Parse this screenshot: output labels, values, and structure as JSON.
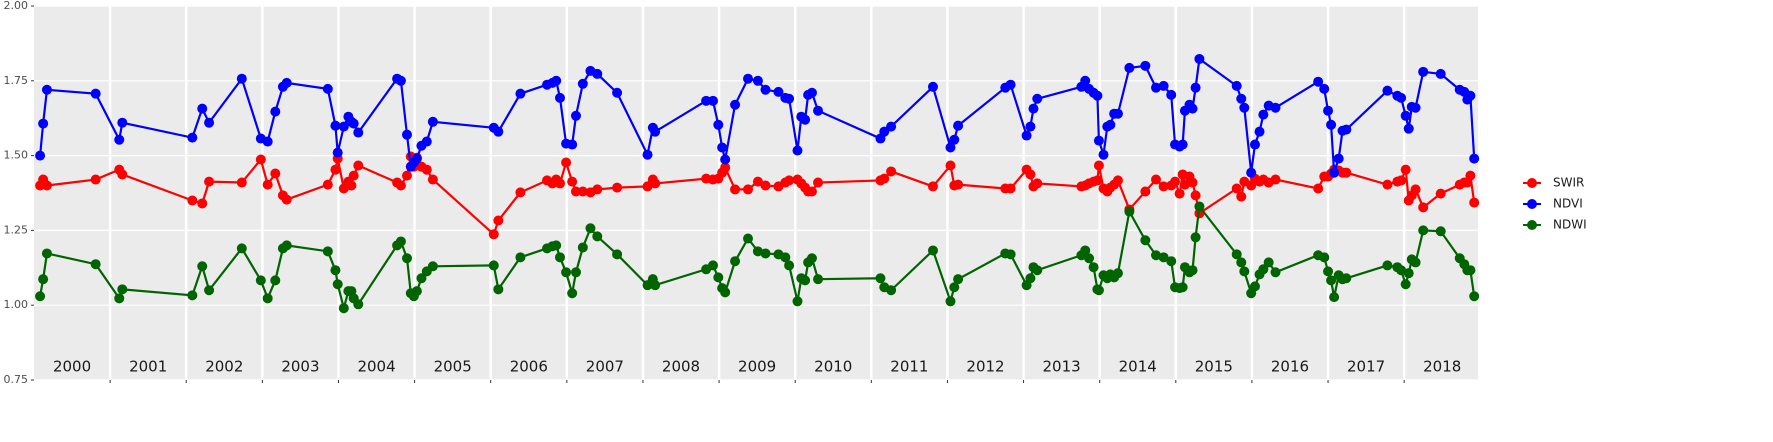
{
  "chart_data": {
    "type": "line",
    "x": [
      2000.08,
      2000.12,
      2000.17,
      2000.81,
      2001.12,
      2001.16,
      2002.08,
      2002.21,
      2002.3,
      2002.73,
      2002.98,
      2003.07,
      2003.17,
      2003.27,
      2003.32,
      2003.86,
      2003.96,
      2003.99,
      2004.07,
      2004.13,
      2004.17,
      2004.2,
      2004.26,
      2004.77,
      2004.82,
      2004.9,
      2004.95,
      2004.99,
      2005.03,
      2005.09,
      2005.16,
      2005.24,
      2006.04,
      2006.1,
      2006.39,
      2006.74,
      2006.81,
      2006.86,
      2006.91,
      2006.99,
      2007.07,
      2007.12,
      2007.21,
      2007.31,
      2007.4,
      2007.66,
      2008.06,
      2008.13,
      2008.16,
      2008.83,
      2008.92,
      2008.99,
      2009.04,
      2009.08,
      2009.21,
      2009.38,
      2009.51,
      2009.61,
      2009.78,
      2009.87,
      2009.92,
      2010.03,
      2010.08,
      2010.13,
      2010.17,
      2010.22,
      2010.3,
      2011.12,
      2011.17,
      2011.26,
      2011.81,
      2012.04,
      2012.09,
      2012.14,
      2012.76,
      2012.83,
      2013.04,
      2013.09,
      2013.13,
      2013.18,
      2013.76,
      2013.81,
      2013.86,
      2013.92,
      2013.97,
      2013.99,
      2014.05,
      2014.1,
      2014.14,
      2014.19,
      2014.24,
      2014.39,
      2014.6,
      2014.74,
      2014.84,
      2014.94,
      2014.99,
      2015.05,
      2015.09,
      2015.12,
      2015.18,
      2015.22,
      2015.26,
      2015.31,
      2015.8,
      2015.86,
      2015.9,
      2015.99,
      2016.04,
      2016.1,
      2016.15,
      2016.22,
      2016.31,
      2016.87,
      2016.95,
      2017.0,
      2017.04,
      2017.08,
      2017.14,
      2017.19,
      2017.24,
      2017.78,
      2017.91,
      2017.96,
      2018.02,
      2018.06,
      2018.1,
      2018.15,
      2018.25,
      2018.48,
      2018.73,
      2018.79,
      2018.83,
      2018.87,
      2018.92
    ],
    "series": [
      {
        "name": "SWIR",
        "color": "#ff0000",
        "values": [
          1.4,
          1.42,
          1.4,
          1.42,
          1.453,
          1.437,
          1.35,
          1.34,
          1.413,
          1.41,
          1.487,
          1.403,
          1.44,
          1.367,
          1.353,
          1.403,
          1.453,
          1.49,
          1.39,
          1.413,
          1.4,
          1.433,
          1.467,
          1.41,
          1.4,
          1.433,
          1.497,
          1.463,
          1.493,
          1.463,
          1.453,
          1.42,
          1.237,
          1.283,
          1.377,
          1.417,
          1.407,
          1.42,
          1.407,
          1.477,
          1.413,
          1.38,
          1.38,
          1.377,
          1.387,
          1.393,
          1.397,
          1.42,
          1.407,
          1.423,
          1.42,
          1.423,
          1.443,
          1.46,
          1.387,
          1.387,
          1.413,
          1.4,
          1.397,
          1.41,
          1.417,
          1.42,
          1.407,
          1.393,
          1.38,
          1.38,
          1.41,
          1.417,
          1.423,
          1.447,
          1.397,
          1.467,
          1.4,
          1.403,
          1.39,
          1.39,
          1.453,
          1.437,
          1.397,
          1.407,
          1.397,
          1.4,
          1.407,
          1.413,
          1.417,
          1.467,
          1.39,
          1.38,
          1.393,
          1.403,
          1.417,
          1.32,
          1.38,
          1.42,
          1.397,
          1.4,
          1.413,
          1.373,
          1.437,
          1.403,
          1.43,
          1.41,
          1.367,
          1.307,
          1.39,
          1.363,
          1.413,
          1.4,
          1.423,
          1.413,
          1.42,
          1.41,
          1.42,
          1.39,
          1.43,
          1.43,
          1.44,
          1.453,
          1.45,
          1.443,
          1.443,
          1.403,
          1.413,
          1.417,
          1.453,
          1.35,
          1.367,
          1.387,
          1.327,
          1.373,
          1.403,
          1.41,
          1.41,
          1.433,
          1.343
        ]
      },
      {
        "name": "NDVI",
        "color": "#0000ff",
        "values": [
          1.5,
          1.607,
          1.72,
          1.707,
          1.553,
          1.61,
          1.56,
          1.657,
          1.61,
          1.757,
          1.557,
          1.547,
          1.647,
          1.73,
          1.743,
          1.723,
          1.6,
          1.51,
          1.597,
          1.63,
          1.613,
          1.607,
          1.577,
          1.757,
          1.75,
          1.57,
          1.463,
          1.477,
          1.49,
          1.533,
          1.547,
          1.613,
          1.593,
          1.58,
          1.707,
          1.737,
          1.743,
          1.75,
          1.693,
          1.54,
          1.537,
          1.633,
          1.74,
          1.783,
          1.773,
          1.71,
          1.503,
          1.593,
          1.58,
          1.683,
          1.683,
          1.603,
          1.527,
          1.487,
          1.67,
          1.757,
          1.75,
          1.72,
          1.713,
          1.693,
          1.69,
          1.517,
          1.63,
          1.62,
          1.703,
          1.71,
          1.65,
          1.557,
          1.58,
          1.597,
          1.73,
          1.527,
          1.553,
          1.6,
          1.727,
          1.737,
          1.567,
          1.597,
          1.657,
          1.69,
          1.73,
          1.75,
          1.723,
          1.71,
          1.7,
          1.55,
          1.503,
          1.597,
          1.603,
          1.64,
          1.64,
          1.793,
          1.8,
          1.727,
          1.733,
          1.703,
          1.537,
          1.53,
          1.537,
          1.65,
          1.67,
          1.657,
          1.727,
          1.823,
          1.733,
          1.69,
          1.66,
          1.443,
          1.537,
          1.58,
          1.637,
          1.667,
          1.66,
          1.747,
          1.723,
          1.65,
          1.603,
          1.443,
          1.49,
          1.583,
          1.587,
          1.717,
          1.7,
          1.693,
          1.633,
          1.59,
          1.663,
          1.66,
          1.78,
          1.773,
          1.72,
          1.713,
          1.687,
          1.7,
          1.49
        ]
      },
      {
        "name": "NDWI",
        "color": "#006400",
        "values": [
          1.03,
          1.087,
          1.173,
          1.137,
          1.023,
          1.053,
          1.033,
          1.13,
          1.05,
          1.19,
          1.083,
          1.023,
          1.083,
          1.19,
          1.2,
          1.18,
          1.117,
          1.07,
          0.99,
          1.047,
          1.047,
          1.023,
          1.003,
          1.2,
          1.213,
          1.157,
          1.04,
          1.03,
          1.047,
          1.09,
          1.113,
          1.13,
          1.133,
          1.053,
          1.16,
          1.19,
          1.197,
          1.2,
          1.16,
          1.11,
          1.04,
          1.11,
          1.193,
          1.257,
          1.23,
          1.17,
          1.067,
          1.087,
          1.067,
          1.12,
          1.133,
          1.093,
          1.057,
          1.043,
          1.147,
          1.223,
          1.18,
          1.173,
          1.17,
          1.16,
          1.133,
          1.013,
          1.09,
          1.083,
          1.143,
          1.157,
          1.087,
          1.09,
          1.06,
          1.05,
          1.183,
          1.013,
          1.06,
          1.087,
          1.173,
          1.17,
          1.067,
          1.09,
          1.127,
          1.117,
          1.167,
          1.183,
          1.157,
          1.127,
          1.053,
          1.05,
          1.1,
          1.09,
          1.103,
          1.093,
          1.107,
          1.313,
          1.217,
          1.167,
          1.16,
          1.147,
          1.06,
          1.057,
          1.06,
          1.127,
          1.11,
          1.117,
          1.227,
          1.33,
          1.17,
          1.143,
          1.113,
          1.04,
          1.063,
          1.103,
          1.12,
          1.143,
          1.11,
          1.167,
          1.16,
          1.113,
          1.083,
          1.027,
          1.1,
          1.087,
          1.09,
          1.133,
          1.127,
          1.117,
          1.07,
          1.107,
          1.153,
          1.143,
          1.25,
          1.247,
          1.157,
          1.137,
          1.117,
          1.117,
          1.03
        ]
      }
    ],
    "xlim": [
      2000,
      2018.97
    ],
    "xticks": [
      2001,
      2002,
      2003,
      2004,
      2005,
      2006,
      2007,
      2008,
      2009,
      2010,
      2011,
      2012,
      2013,
      2014,
      2015,
      2016,
      2017,
      2018
    ],
    "year_labels": [
      2000,
      2001,
      2002,
      2003,
      2004,
      2005,
      2006,
      2007,
      2008,
      2009,
      2010,
      2011,
      2012,
      2013,
      2014,
      2015,
      2016,
      2017,
      2018
    ],
    "ylim": [
      0.75,
      2.0
    ],
    "yticks": [
      {
        "value": 0.75,
        "label": "0.75"
      },
      {
        "value": 1.0,
        "label": "1.00"
      },
      {
        "value": 1.25,
        "label": "1.25"
      },
      {
        "value": 1.5,
        "label": "1.50"
      },
      {
        "value": 1.75,
        "label": "1.75"
      },
      {
        "value": 2.0,
        "label": "2.00"
      }
    ],
    "grid": true,
    "legend": "right"
  }
}
